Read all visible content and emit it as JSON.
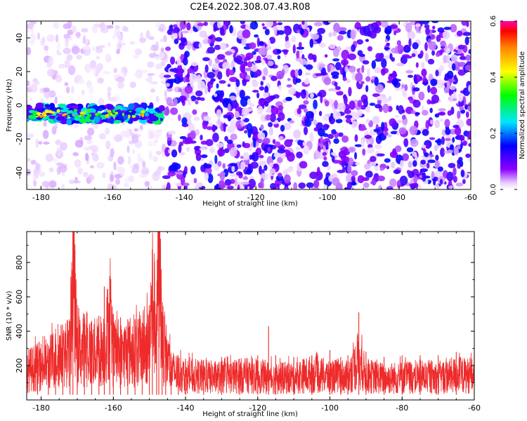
{
  "chart_data": [
    {
      "type": "heatmap",
      "title": "C2E4.2022.308.07.43.R08",
      "xlabel": "Height of straight line (km)",
      "ylabel": "Frequency (Hz)",
      "xlim": [
        -184,
        -60
      ],
      "ylim": [
        -50,
        50
      ],
      "x_ticks": [
        "-180",
        "-160",
        "-140",
        "-120",
        "-100",
        "-80",
        "-60"
      ],
      "y_ticks": [
        "-40",
        "-20",
        "0",
        "20",
        "40"
      ],
      "colorbar": {
        "label": "Normalized spectral amplitude",
        "range": [
          0.0,
          0.6
        ],
        "ticks": [
          "0.0",
          "0.2",
          "0.4",
          "0.6"
        ]
      },
      "features": [
        {
          "x_range": [
            -184,
            -146
          ],
          "y_center": -5,
          "y_halfwidth": 5,
          "peak_amplitude": 0.5
        },
        {
          "x_range": [
            -145,
            -60
          ],
          "y_center": 0,
          "y_halfwidth": 50,
          "peak_amplitude": 0.15
        }
      ]
    },
    {
      "type": "line",
      "xlabel": "Height of straight line (km)",
      "ylabel": "SNR (10 * v/v)",
      "xlim": [
        -184,
        -60
      ],
      "ylim": [
        0,
        980
      ],
      "x_ticks": [
        "-180",
        "-160",
        "-140",
        "-120",
        "-100",
        "-80",
        "-60"
      ],
      "y_ticks": [
        "200",
        "400",
        "600",
        "800"
      ],
      "color": "#ee2a2a",
      "series": [
        {
          "x": [
            -184,
            -181,
            -178,
            -176,
            -174,
            -172,
            -171.2,
            -170,
            -168,
            -166,
            -164,
            -162.5,
            -161,
            -160,
            -158,
            -156,
            -154,
            -152,
            -150,
            -149.2,
            -148,
            -147.4,
            -146.5,
            -145.5,
            -144,
            -142,
            -140,
            -135,
            -130,
            -125,
            -120,
            -117,
            -115,
            -110,
            -105,
            -100,
            -97,
            -95,
            -92,
            -90,
            -85,
            -80,
            -75,
            -70,
            -65,
            -60
          ],
          "y": [
            170,
            190,
            210,
            250,
            260,
            280,
            780,
            280,
            300,
            270,
            280,
            310,
            450,
            270,
            260,
            280,
            290,
            300,
            330,
            620,
            350,
            970,
            340,
            270,
            170,
            150,
            140,
            135,
            130,
            140,
            140,
            130,
            125,
            130,
            150,
            135,
            140,
            130,
            230,
            140,
            125,
            130,
            135,
            130,
            145,
            140
          ],
          "spike_lengths": [
            160,
            200,
            230,
            350,
            370,
            460,
            780,
            420,
            500,
            460,
            490,
            660,
            720,
            500,
            480,
            470,
            470,
            450,
            520,
            720,
            560,
            970,
            510,
            370,
            260,
            250,
            240,
            230,
            250,
            240,
            260,
            430,
            260,
            250,
            260,
            290,
            250,
            260,
            510,
            280,
            250,
            260,
            260,
            260,
            280,
            280
          ]
        }
      ]
    }
  ]
}
